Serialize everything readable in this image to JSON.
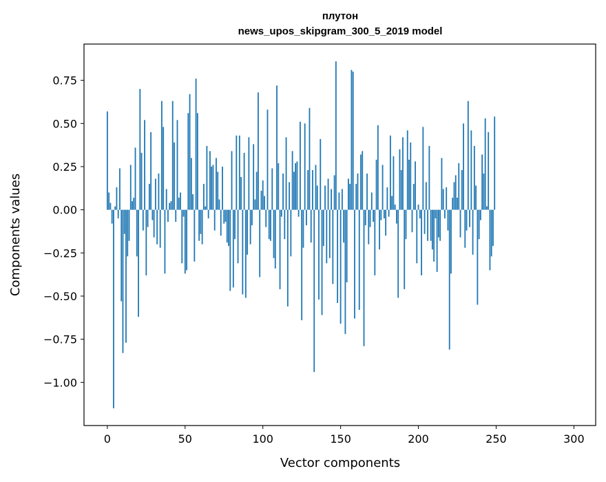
{
  "chart_data": {
    "type": "bar",
    "title_lines": [
      "плутон",
      "news_upos_skipgram_300_5_2019 model"
    ],
    "xlabel": "Vector components",
    "ylabel": "Components values",
    "xlim": [
      -15,
      314
    ],
    "ylim": [
      -1.25,
      0.96
    ],
    "xticks": [
      0,
      50,
      100,
      150,
      200,
      250,
      300
    ],
    "yticks": [
      0.75,
      0.5,
      0.25,
      0.0,
      -0.25,
      -0.5,
      -0.75,
      -1.0
    ],
    "ytick_labels": [
      "0.75",
      "0.50",
      "0.25",
      "0.00",
      "−0.25",
      "−0.50",
      "−0.75",
      "−1.00"
    ],
    "grid": false,
    "series_color": "#1f77b4",
    "series": [
      {
        "name": "плутон",
        "values": [
          0.57,
          0.1,
          0.04,
          -0.08,
          -1.15,
          0.02,
          0.13,
          -0.05,
          0.24,
          -0.53,
          -0.83,
          -0.14,
          -0.77,
          -0.27,
          -0.18,
          0.26,
          0.05,
          0.07,
          0.36,
          -0.27,
          -0.62,
          0.7,
          0.33,
          -0.12,
          0.52,
          -0.38,
          -0.1,
          0.15,
          0.45,
          -0.06,
          -0.16,
          0.18,
          -0.2,
          0.21,
          -0.22,
          0.63,
          0.48,
          -0.37,
          0.12,
          -0.07,
          0.04,
          0.05,
          0.63,
          0.39,
          -0.07,
          0.52,
          0.07,
          0.1,
          -0.31,
          -0.04,
          -0.37,
          -0.35,
          0.56,
          0.67,
          0.3,
          0.09,
          -0.3,
          0.76,
          0.56,
          -0.18,
          -0.14,
          -0.2,
          0.15,
          0.02,
          0.37,
          -0.05,
          0.34,
          0.25,
          0.26,
          -0.12,
          0.3,
          0.22,
          0.06,
          -0.15,
          0.25,
          -0.08,
          -0.07,
          -0.19,
          -0.21,
          -0.47,
          0.34,
          -0.45,
          -0.17,
          0.43,
          -0.31,
          0.43,
          0.19,
          -0.49,
          0.33,
          -0.51,
          -0.26,
          0.42,
          -0.2,
          -0.09,
          0.38,
          0.06,
          0.22,
          0.68,
          -0.39,
          0.11,
          0.17,
          0.08,
          -0.1,
          0.58,
          -0.17,
          -0.18,
          0.24,
          -0.28,
          -0.34,
          0.72,
          0.27,
          -0.46,
          -0.04,
          0.21,
          -0.17,
          0.42,
          -0.56,
          0.16,
          -0.27,
          0.34,
          0.22,
          0.27,
          0.28,
          -0.04,
          0.51,
          -0.64,
          -0.22,
          0.5,
          -0.09,
          0.23,
          0.59,
          -0.19,
          0.23,
          -0.94,
          0.26,
          0.14,
          -0.52,
          0.41,
          -0.61,
          -0.21,
          0.14,
          -0.31,
          0.18,
          -0.28,
          0.12,
          -0.43,
          0.2,
          0.86,
          -0.54,
          0.1,
          -0.66,
          0.12,
          -0.19,
          -0.72,
          -0.42,
          0.18,
          0.15,
          0.81,
          0.8,
          -0.63,
          0.15,
          0.21,
          -0.58,
          0.32,
          0.34,
          -0.79,
          -0.09,
          0.21,
          -0.2,
          -0.1,
          0.1,
          -0.07,
          -0.38,
          0.29,
          0.49,
          -0.23,
          -0.06,
          0.26,
          -0.05,
          -0.15,
          0.13,
          -0.04,
          0.43,
          0.08,
          0.31,
          0.03,
          -0.08,
          -0.51,
          0.35,
          0.23,
          0.42,
          -0.46,
          -0.17,
          0.46,
          0.29,
          0.39,
          -0.13,
          0.15,
          0.28,
          -0.31,
          0.03,
          -0.05,
          -0.38,
          0.48,
          -0.14,
          0.16,
          -0.18,
          0.37,
          -0.18,
          -0.23,
          -0.3,
          -0.05,
          -0.36,
          -0.16,
          -0.18,
          0.3,
          0.12,
          -0.05,
          0.13,
          -0.12,
          -0.81,
          -0.37,
          0.07,
          0.16,
          0.2,
          0.07,
          0.27,
          -0.16,
          0.23,
          0.5,
          -0.22,
          -0.12,
          0.63,
          -0.1,
          0.46,
          -0.26,
          0.37,
          0.14,
          -0.55,
          -0.17,
          -0.06,
          0.32,
          0.21,
          0.53,
          0.02,
          0.45,
          -0.35,
          -0.27,
          -0.21,
          0.54
        ]
      }
    ]
  }
}
